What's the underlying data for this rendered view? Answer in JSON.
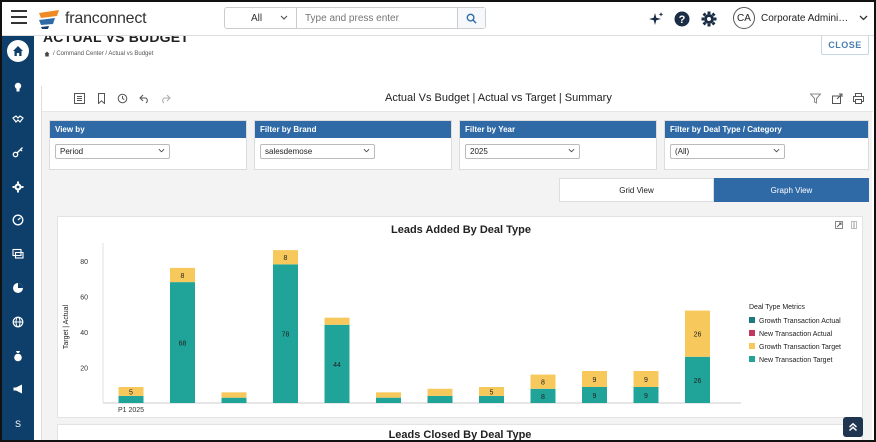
{
  "topbar": {
    "logo_text": "franconnect",
    "search_scope": "All",
    "search_placeholder": "Type and press enter",
    "user_initials": "CA",
    "user_name": "Corporate Administrator"
  },
  "sidebar": {
    "items": [
      "home-icon",
      "lightbulb-icon",
      "handshake-icon",
      "key-icon",
      "gear-icon",
      "gauge-icon",
      "chat-icon",
      "pie-icon",
      "globe-icon",
      "money-bag-icon",
      "megaphone-icon"
    ],
    "bottom_label": "S"
  },
  "page": {
    "title": "ACTUAL VS BUDGET",
    "breadcrumb": "/ Command Center / Actual vs Budget",
    "close_label": "CLOSE"
  },
  "report": {
    "title": "Actual Vs Budget | Actual vs Target | Summary",
    "filters": [
      {
        "header": "View by",
        "value": "Period"
      },
      {
        "header": "Filter by Brand",
        "value": "salesdemose"
      },
      {
        "header": "Filter by Year",
        "value": "2025"
      },
      {
        "header": "Filter by  Deal Type / Category",
        "value": "(All)"
      }
    ],
    "grid_view_label": "Grid View",
    "graph_view_label": "Graph View",
    "second_chart_title": "Leads Closed By Deal Type"
  },
  "colors": {
    "brand_blue": "#2f6aa7",
    "sidebar": "#0e3f6a",
    "growth_actual": "#1a7c82",
    "new_actual": "#c0395a",
    "growth_target": "#f7c85c",
    "new_target": "#20a49a"
  },
  "chart_data": {
    "type": "bar",
    "title": "Leads Added By Deal Type",
    "ylabel": "Target  |  Actual",
    "ylim": [
      0,
      90
    ],
    "yticks": [
      20,
      40,
      60,
      80
    ],
    "categories": [
      "P1 2025",
      "",
      "",
      "",
      "",
      "",
      "",
      "",
      "",
      "",
      "",
      ""
    ],
    "legend_title": "Deal Type Metrics",
    "legend_placement": "right",
    "series": [
      {
        "name": "Growth Transaction Actual",
        "color": "#1a7c82",
        "values": [
          0,
          0,
          0,
          0,
          0,
          0,
          0,
          0,
          0,
          0,
          0,
          0
        ]
      },
      {
        "name": "New Transaction Actual",
        "color": "#c0395a",
        "values": [
          0,
          0,
          0,
          0,
          0,
          0,
          0,
          0,
          0,
          0,
          0,
          0
        ]
      },
      {
        "name": "Growth Transaction Target",
        "color": "#f7c85c",
        "values": [
          5,
          8,
          3,
          8,
          4,
          3,
          4,
          5,
          8,
          9,
          9,
          26
        ]
      },
      {
        "name": "New Transaction Target",
        "color": "#20a49a",
        "values": [
          4,
          68,
          3,
          78,
          44,
          3,
          4,
          4,
          8,
          9,
          9,
          26
        ]
      }
    ],
    "data_labels": [
      {
        "index": 0,
        "series": "Growth Transaction Target",
        "text": "5"
      },
      {
        "index": 1,
        "series": "Growth Transaction Target",
        "text": "8"
      },
      {
        "index": 1,
        "series": "New Transaction Target",
        "text": "68"
      },
      {
        "index": 3,
        "series": "Growth Transaction Target",
        "text": "8"
      },
      {
        "index": 3,
        "series": "New Transaction Target",
        "text": "78"
      },
      {
        "index": 4,
        "series": "New Transaction Target",
        "text": "44"
      },
      {
        "index": 7,
        "series": "Growth Transaction Target",
        "text": "5"
      },
      {
        "index": 8,
        "series": "Growth Transaction Target",
        "text": "8"
      },
      {
        "index": 8,
        "series": "New Transaction Target",
        "text": "8"
      },
      {
        "index": 9,
        "series": "Growth Transaction Target",
        "text": "9"
      },
      {
        "index": 9,
        "series": "New Transaction Target",
        "text": "9"
      },
      {
        "index": 10,
        "series": "Growth Transaction Target",
        "text": "9"
      },
      {
        "index": 10,
        "series": "New Transaction Target",
        "text": "9"
      },
      {
        "index": 11,
        "series": "Growth Transaction Target",
        "text": "26"
      },
      {
        "index": 11,
        "series": "New Transaction Target",
        "text": "26"
      }
    ],
    "grid": false
  }
}
